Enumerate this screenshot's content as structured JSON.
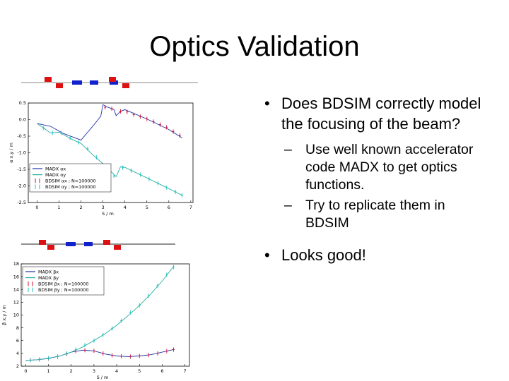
{
  "slide": {
    "title": "Optics Validation",
    "bullets": [
      {
        "text": "Does BDSIM correctly model the focusing of the beam?",
        "sub": [
          "Use well known accelerator code MADX to get optics functions.",
          "Try to replicate them in BDSIM"
        ]
      },
      {
        "text": "Looks good!",
        "sub": []
      }
    ]
  },
  "colors": {
    "madx_x": "#2233aa",
    "madx_y": "#2ab0a0",
    "bdsim_x": "#cc1133",
    "bdsim_y": "#22c0c0",
    "quad_focus": "#dd1111",
    "quad_defocus": "#1122cc"
  },
  "chart_data": [
    {
      "type": "line",
      "ylabel": "α x,y / m",
      "xlabel": "S / m",
      "xlim": [
        -0.4,
        7.1
      ],
      "ylim": [
        -2.5,
        0.5
      ],
      "xticks": [
        "0",
        "1",
        "2",
        "3",
        "4",
        "5",
        "6",
        "7"
      ],
      "yticks": [
        "0.5",
        "0.0",
        "-0.5",
        "-1.0",
        "-1.5",
        "-2.0",
        "-2.5"
      ],
      "legend": {
        "position": "bottom-left",
        "entries": [
          "MADX αx",
          "MADX αy",
          "BDSIM αx ; N=100000",
          "BDSIM αy ; N=100000"
        ]
      },
      "series": [
        {
          "name": "MADX αx",
          "style": "line",
          "x": [
            0,
            0.6,
            1.2,
            2.0,
            2.6,
            2.9,
            3.0,
            3.2,
            3.5,
            3.6,
            3.8,
            4.0,
            5.0,
            6.0,
            6.6
          ],
          "y": [
            -0.12,
            -0.2,
            -0.42,
            -0.62,
            -0.15,
            0.1,
            0.45,
            0.38,
            0.3,
            0.12,
            0.25,
            0.3,
            0.02,
            -0.3,
            -0.55
          ]
        },
        {
          "name": "MADX αy",
          "style": "line",
          "x": [
            0,
            0.4,
            0.6,
            1.0,
            1.6,
            2.0,
            2.6,
            3.0,
            3.6,
            3.8,
            4.0,
            5.0,
            6.0,
            6.6
          ],
          "y": [
            -0.12,
            -0.3,
            -0.4,
            -0.38,
            -0.6,
            -0.72,
            -1.1,
            -1.33,
            -1.72,
            -1.42,
            -1.44,
            -1.76,
            -2.08,
            -2.28
          ]
        },
        {
          "name": "BDSIM αx ; N=100000",
          "style": "errorbar",
          "x": [
            3.1,
            3.4,
            3.8,
            4.1,
            4.4,
            4.7,
            5.0,
            5.3,
            5.6,
            5.9,
            6.2,
            6.5
          ],
          "y": [
            0.37,
            0.33,
            0.25,
            0.23,
            0.15,
            0.09,
            0.02,
            -0.06,
            -0.15,
            -0.23,
            -0.36,
            -0.48
          ]
        },
        {
          "name": "BDSIM αy ; N=100000",
          "style": "errorbar",
          "x": [
            0.3,
            0.7,
            1.1,
            1.5,
            1.9,
            2.3,
            2.7,
            3.1,
            3.5,
            3.9,
            4.3,
            4.7,
            5.1,
            5.5,
            5.9,
            6.3,
            6.6
          ],
          "y": [
            -0.26,
            -0.4,
            -0.4,
            -0.55,
            -0.69,
            -0.88,
            -1.14,
            -1.4,
            -1.7,
            -1.45,
            -1.54,
            -1.66,
            -1.79,
            -1.92,
            -2.05,
            -2.18,
            -2.28
          ]
        }
      ]
    },
    {
      "type": "line",
      "ylabel": "β x,y / m",
      "xlabel": "S / m",
      "xlim": [
        -0.2,
        7.2
      ],
      "ylim": [
        2,
        18
      ],
      "xticks": [
        "0",
        "1",
        "2",
        "3",
        "4",
        "5",
        "6",
        "7"
      ],
      "yticks": [
        "2",
        "4",
        "6",
        "8",
        "10",
        "12",
        "14",
        "16",
        "18"
      ],
      "legend": {
        "position": "top-left",
        "entries": [
          "MADX βx",
          "MADX βy",
          "BDSIM βx ; N=100000",
          "BDSIM βy ; N=100000"
        ]
      },
      "series": [
        {
          "name": "MADX βx",
          "style": "line",
          "x": [
            0,
            0.5,
            1.0,
            1.5,
            2.0,
            2.5,
            3.0,
            3.5,
            4.0,
            4.5,
            5.0,
            5.5,
            6.0,
            6.5
          ],
          "y": [
            2.9,
            3.0,
            3.2,
            3.6,
            4.2,
            4.5,
            4.4,
            3.9,
            3.6,
            3.5,
            3.6,
            3.8,
            4.2,
            4.6
          ]
        },
        {
          "name": "MADX βy",
          "style": "line",
          "x": [
            0,
            0.5,
            1.0,
            1.5,
            2.0,
            2.5,
            3.0,
            3.5,
            4.0,
            4.5,
            5.0,
            5.5,
            6.0,
            6.5
          ],
          "y": [
            2.9,
            3.0,
            3.25,
            3.6,
            4.2,
            5.0,
            6.0,
            7.1,
            8.4,
            9.9,
            11.5,
            13.3,
            15.3,
            17.6
          ]
        },
        {
          "name": "BDSIM βx ; N=100000",
          "style": "errorbar",
          "x": [
            0.2,
            0.6,
            1.0,
            1.4,
            1.8,
            2.2,
            2.6,
            3.0,
            3.4,
            3.8,
            4.2,
            4.6,
            5.0,
            5.4,
            5.8,
            6.2,
            6.5
          ],
          "y": [
            2.95,
            3.05,
            3.2,
            3.5,
            3.9,
            4.35,
            4.5,
            4.4,
            4.0,
            3.7,
            3.55,
            3.5,
            3.6,
            3.75,
            4.0,
            4.35,
            4.6
          ]
        },
        {
          "name": "BDSIM βy ; N=100000",
          "style": "errorbar",
          "x": [
            0.2,
            0.6,
            1.0,
            1.4,
            1.8,
            2.2,
            2.6,
            3.0,
            3.4,
            3.8,
            4.2,
            4.6,
            5.0,
            5.4,
            5.8,
            6.2,
            6.5
          ],
          "y": [
            2.95,
            3.05,
            3.25,
            3.5,
            4.0,
            4.6,
            5.3,
            6.0,
            6.9,
            7.9,
            9.1,
            10.4,
            11.5,
            13.0,
            14.6,
            16.3,
            17.5
          ]
        }
      ]
    }
  ]
}
